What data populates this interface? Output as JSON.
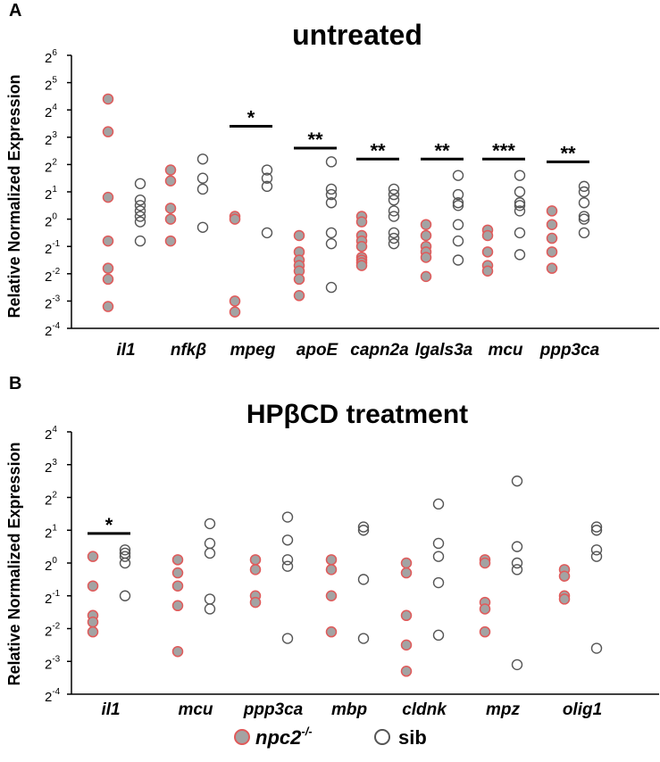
{
  "figure": {
    "legend": {
      "mutant_label": "npc2",
      "mutant_superscript": "-/-",
      "sib_label": "sib"
    },
    "colors": {
      "mutant_fill": "#a3a3a3",
      "mutant_stroke": "#e05a5a",
      "sib_stroke": "#555555",
      "text": "#000000"
    }
  },
  "chart_data": [
    {
      "panel_letter": "A",
      "type": "scatter",
      "title": "untreated",
      "ylabel": "Relative Normalized Expression",
      "y_scale": "log2",
      "ylim_exponent": [
        -4,
        6
      ],
      "y_tick_base": "2",
      "y_tick_exponents": [
        "6",
        "5",
        "4",
        "3",
        "2",
        "1",
        "0",
        "-1",
        "-2",
        "-3",
        "-4"
      ],
      "categories": [
        "il1",
        "nfkβ",
        "mpeg",
        "apoE",
        "capn2a",
        "lgals3a",
        "mcu",
        "ppp3ca"
      ],
      "series": [
        {
          "name": "npc2-/-",
          "values_log2": [
            [
              4.4,
              3.2,
              0.8,
              -0.8,
              -1.8,
              -2.2,
              -3.2
            ],
            [
              1.8,
              1.4,
              0.4,
              0.0,
              -0.8
            ],
            [
              0.1,
              0.0,
              -3.0,
              -3.4
            ],
            [
              -0.6,
              -1.2,
              -1.5,
              -1.7,
              -1.9,
              -2.2,
              -2.8
            ],
            [
              0.1,
              -0.1,
              -0.6,
              -0.8,
              -1.0,
              -1.4,
              -1.5,
              -1.6,
              -1.7
            ],
            [
              -0.2,
              -0.6,
              -1.0,
              -1.2,
              -1.4,
              -2.1
            ],
            [
              -0.4,
              -0.6,
              -1.2,
              -1.7,
              -1.9
            ],
            [
              0.3,
              -0.2,
              -0.7,
              -1.2,
              -1.8
            ]
          ]
        },
        {
          "name": "sib",
          "values_log2": [
            [
              1.3,
              0.7,
              0.5,
              0.3,
              0.1,
              -0.1,
              -0.8
            ],
            [
              2.2,
              1.5,
              1.1,
              -0.3
            ],
            [
              1.8,
              1.5,
              1.2,
              -0.5
            ],
            [
              2.1,
              1.1,
              0.9,
              0.6,
              -0.5,
              -0.9,
              -2.5
            ],
            [
              1.1,
              0.9,
              0.7,
              0.3,
              0.1,
              -0.5,
              -0.7,
              -0.9
            ],
            [
              1.6,
              0.9,
              0.6,
              0.5,
              -0.2,
              -0.8,
              -1.5
            ],
            [
              1.6,
              1.0,
              0.6,
              0.5,
              0.3,
              -0.5,
              -1.3
            ],
            [
              1.2,
              1.0,
              0.6,
              0.1,
              0.0,
              -0.5
            ]
          ]
        }
      ],
      "significance": [
        {
          "category": "mpeg",
          "label": "*",
          "y_log2": 3.4
        },
        {
          "category": "apoE",
          "label": "**",
          "y_log2": 2.6
        },
        {
          "category": "capn2a",
          "label": "**",
          "y_log2": 2.2
        },
        {
          "category": "lgals3a",
          "label": "**",
          "y_log2": 2.2
        },
        {
          "category": "mcu",
          "label": "***",
          "y_log2": 2.2
        },
        {
          "category": "ppp3ca",
          "label": "**",
          "y_log2": 2.1
        }
      ],
      "grid": false
    },
    {
      "panel_letter": "B",
      "type": "scatter",
      "title": "HPβCD treatment",
      "ylabel": "Relative Normalized Expression",
      "y_scale": "log2",
      "ylim_exponent": [
        -4,
        4
      ],
      "y_tick_base": "2",
      "y_tick_exponents": [
        "4",
        "3",
        "2",
        "1",
        "0",
        "-1",
        "-2",
        "-3",
        "-4"
      ],
      "categories": [
        "il1",
        "mcu",
        "ppp3ca",
        "mbp",
        "cldnk",
        "mpz",
        "olig1"
      ],
      "series": [
        {
          "name": "npc2-/-",
          "values_log2": [
            [
              0.2,
              -0.7,
              -1.6,
              -1.8,
              -2.1
            ],
            [
              0.1,
              -0.3,
              -0.7,
              -1.3,
              -2.7
            ],
            [
              0.1,
              -0.2,
              -1.0,
              -1.2
            ],
            [
              0.1,
              -0.2,
              -1.0,
              -2.1
            ],
            [
              0.0,
              -0.3,
              -1.6,
              -2.5,
              -3.3
            ],
            [
              0.1,
              0.0,
              -1.2,
              -1.4,
              -2.1
            ],
            [
              -0.2,
              -0.4,
              -1.0,
              -1.1
            ]
          ]
        },
        {
          "name": "sib",
          "values_log2": [
            [
              0.4,
              0.3,
              0.2,
              0.0,
              -1.0
            ],
            [
              1.2,
              0.6,
              0.3,
              -1.1,
              -1.4
            ],
            [
              1.4,
              0.7,
              0.1,
              -0.1,
              -2.3
            ],
            [
              1.1,
              1.0,
              -0.5,
              -2.3
            ],
            [
              1.8,
              0.6,
              0.2,
              -0.6,
              -2.2
            ],
            [
              2.5,
              0.5,
              0.0,
              -0.2,
              -3.1
            ],
            [
              1.1,
              1.0,
              0.4,
              0.2,
              -2.6
            ]
          ]
        }
      ],
      "significance": [
        {
          "category": "il1",
          "label": "*",
          "y_log2": 0.9
        }
      ],
      "grid": false
    }
  ]
}
